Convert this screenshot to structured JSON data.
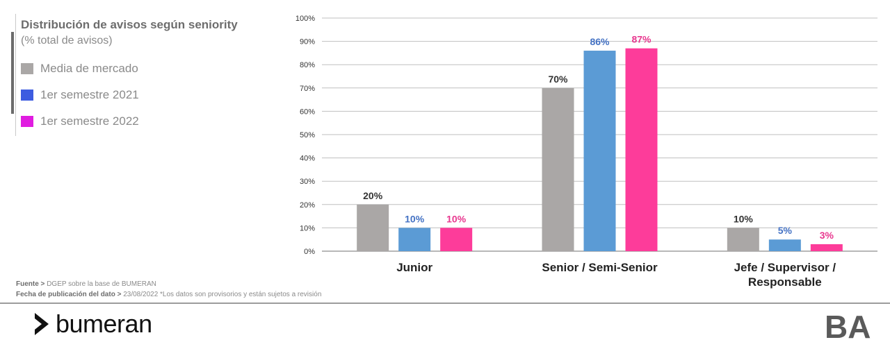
{
  "legend": {
    "title": "Distribución de avisos según seniority",
    "subtitle": "(% total de avisos)",
    "items": [
      {
        "label": "Media de mercado",
        "color": "#aaa7a6"
      },
      {
        "label": "1er semestre 2021",
        "color": "#3d5ce0"
      },
      {
        "label": "1er semestre 2022",
        "color": "#e01ce0"
      }
    ]
  },
  "footer": {
    "source_label": "Fuente >",
    "source_text": "DGEP sobre la base de BUMERAN",
    "pubdate_label": "Fecha de publicación del dato >",
    "pubdate_text": "23/08/2022 *Los datos son provisorios y están sujetos a revisión",
    "brand": "bumeran",
    "logo_text": "BA"
  },
  "chart_data": {
    "type": "bar",
    "categories": [
      [
        "Junior"
      ],
      [
        "Senior / Semi-Senior"
      ],
      [
        "Jefe / Supervisor /",
        "Responsable"
      ]
    ],
    "series": [
      {
        "name": "Media de mercado",
        "values": [
          20,
          70,
          10
        ],
        "color": "#aaa7a6",
        "label_color": "#333333"
      },
      {
        "name": "1er semestre 2021",
        "values": [
          10,
          86,
          5
        ],
        "color": "#5b9bd5",
        "label_color": "#4472c4"
      },
      {
        "name": "1er semestre 2022",
        "values": [
          10,
          87,
          3
        ],
        "color": "#fd3c9a",
        "label_color": "#e8388f"
      }
    ],
    "ylim": [
      0,
      100
    ],
    "yticks": [
      "0%",
      "10%",
      "20%",
      "30%",
      "40%",
      "50%",
      "60%",
      "70%",
      "80%",
      "90%",
      "100%"
    ],
    "data_labels": [
      [
        "20%",
        "70%",
        "10%"
      ],
      [
        "10%",
        "86%",
        "5%"
      ],
      [
        "10%",
        "87%",
        "3%"
      ]
    ],
    "grid": true
  }
}
